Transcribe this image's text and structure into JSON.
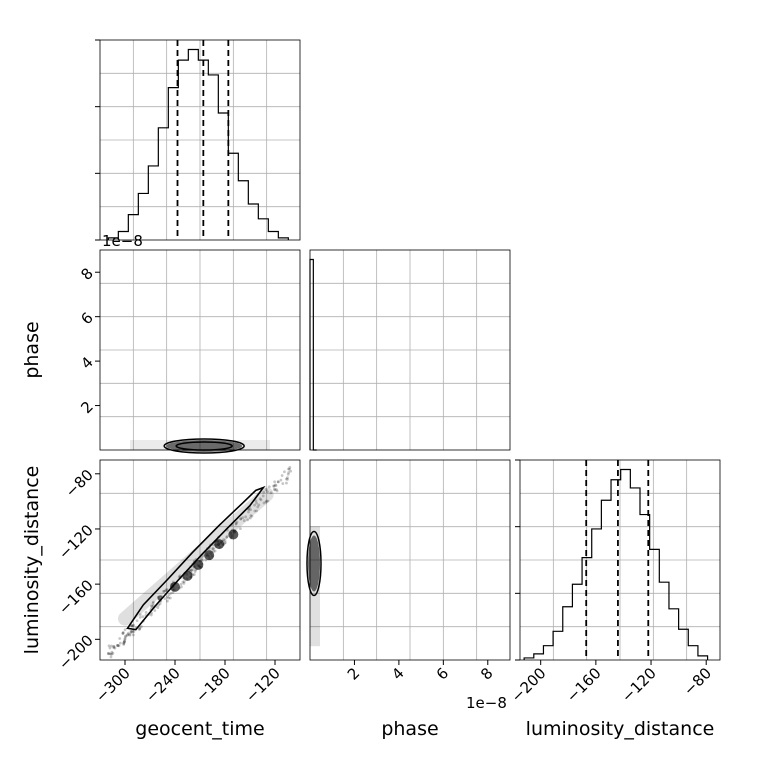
{
  "chart_data": [
    {
      "type": "histogram",
      "panel": "geocent_time",
      "xlim": [
        -330,
        -90
      ],
      "bin_edges": [
        -320,
        -308,
        -296,
        -284,
        -272,
        -260,
        -248,
        -236,
        -224,
        -212,
        -200,
        -188,
        -176,
        -164,
        -152,
        -140,
        -128,
        -116,
        -104
      ],
      "counts": [
        1,
        4,
        12,
        22,
        35,
        53,
        72,
        85,
        90,
        85,
        78,
        60,
        41,
        28,
        17,
        10,
        4,
        1
      ],
      "quantiles": [
        -237,
        -206,
        -176
      ],
      "grid": true
    },
    {
      "type": "density",
      "panel": "geocent_time vs phase",
      "xlim": [
        -330,
        -90
      ],
      "ylim": [
        0,
        9e-08
      ],
      "y_ticks": [
        2,
        4,
        6,
        8
      ],
      "y_offset_text": "1e−8",
      "contour_center_x": -205,
      "grid": true
    },
    {
      "type": "histogram",
      "panel": "phase",
      "xlim": [
        0,
        9e-08
      ],
      "bin_edges": [
        0,
        1.5e-09,
        3e-09
      ],
      "counts": [
        1,
        0
      ],
      "x_ticks": [
        2,
        4,
        6,
        8
      ],
      "x_offset_text": "1e−8",
      "grid": true
    },
    {
      "type": "density",
      "panel": "geocent_time vs luminosity_distance",
      "xlim": [
        -330,
        -90
      ],
      "ylim": [
        -215,
        -70
      ],
      "x_ticks": [
        -300,
        -240,
        -180,
        -120
      ],
      "y_ticks": [
        -80,
        -120,
        -160,
        -200
      ],
      "correlation": "linear",
      "grid": true
    },
    {
      "type": "density",
      "panel": "phase vs luminosity_distance",
      "xlim": [
        0,
        9e-08
      ],
      "ylim": [
        -215,
        -70
      ],
      "x_ticks": [
        2,
        4,
        6,
        8
      ],
      "grid": true
    },
    {
      "type": "histogram",
      "panel": "luminosity_distance",
      "xlim": [
        -215,
        -70
      ],
      "bin_edges": [
        -212,
        -205,
        -198,
        -191,
        -184,
        -177,
        -170,
        -163,
        -156,
        -149,
        -142,
        -135,
        -128,
        -121,
        -114,
        -107,
        -100,
        -93,
        -86,
        -79
      ],
      "counts": [
        1,
        3,
        7,
        14,
        26,
        37,
        50,
        64,
        78,
        88,
        93,
        84,
        71,
        54,
        38,
        25,
        15,
        7,
        2
      ],
      "quantiles": [
        -167,
        -144,
        -122
      ],
      "x_ticks": [
        -200,
        -160,
        -120,
        -80
      ],
      "grid": true
    }
  ],
  "labels": {
    "x": [
      "geocent_time",
      "phase",
      "luminosity_distance"
    ],
    "y": [
      "phase",
      "luminosity_distance"
    ]
  },
  "offset_text": "1e−8"
}
